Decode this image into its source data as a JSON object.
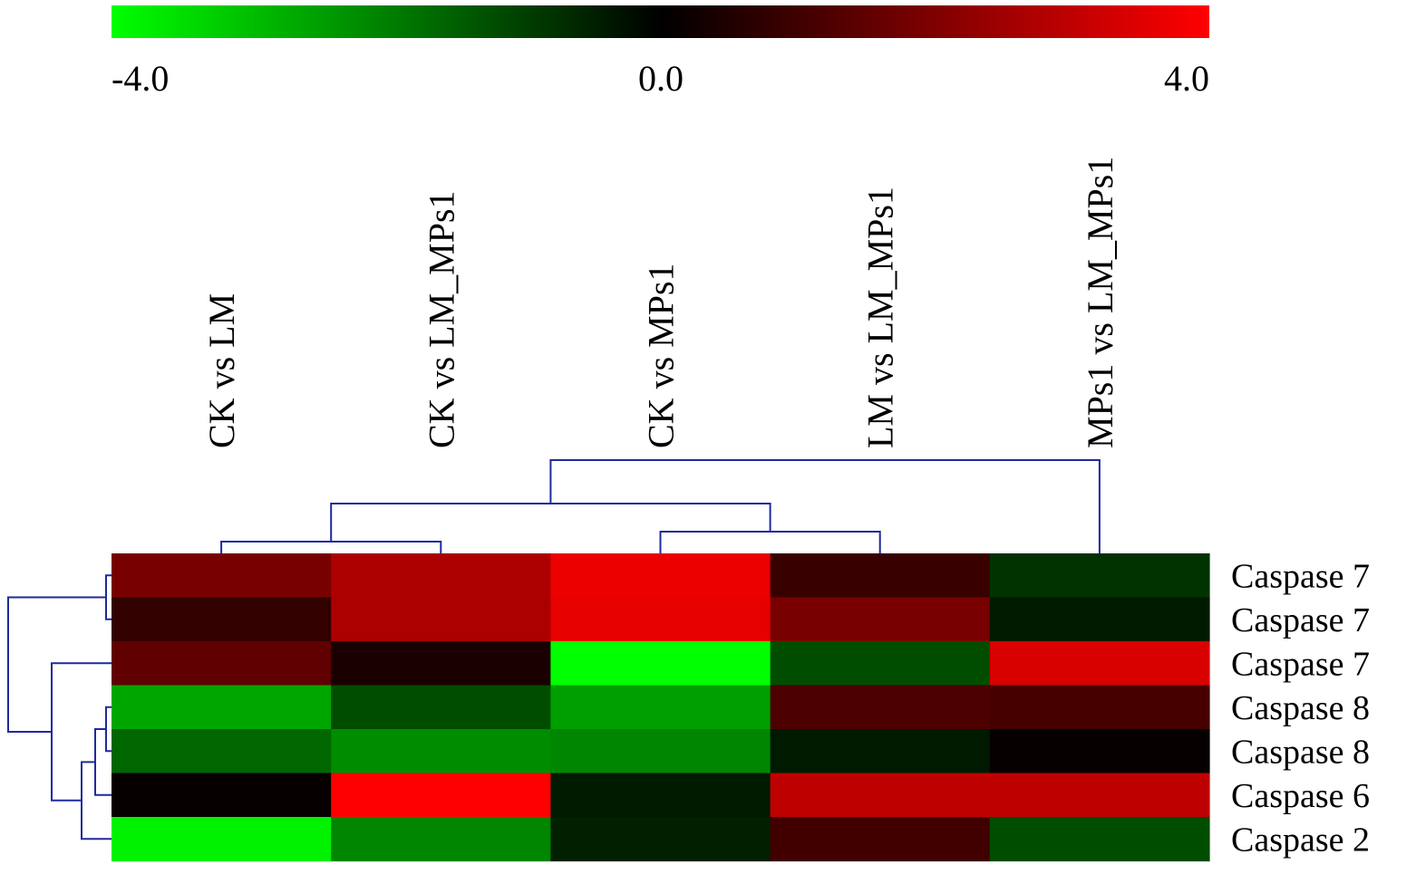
{
  "chart_data": {
    "type": "heatmap",
    "title": "",
    "colorscale": {
      "min": -4.0,
      "max": 4.0,
      "low_color": "#00ff00",
      "mid_color": "#000000",
      "high_color": "#ff0000",
      "tick_labels": [
        "-4.0",
        "0.0",
        "4.0"
      ]
    },
    "columns": [
      "CK vs LM",
      "CK vs LM_MPs1",
      "CK vs MPs1",
      "LM vs LM_MPs1",
      "MPs1 vs LM_MPs1"
    ],
    "rows": [
      "Caspase 7",
      "Caspase 7",
      "Caspase 7",
      "Caspase 8",
      "Caspase 8",
      "Caspase 6",
      "Caspase 2"
    ],
    "values": [
      [
        1.9,
        2.7,
        3.7,
        0.9,
        -0.8
      ],
      [
        0.8,
        2.7,
        3.6,
        1.9,
        -0.4
      ],
      [
        1.5,
        0.4,
        -4.0,
        -1.2,
        3.4
      ],
      [
        -2.6,
        -1.2,
        -2.5,
        1.2,
        1.1
      ],
      [
        -1.6,
        -2.2,
        -2.1,
        -0.4,
        0.1
      ],
      [
        0.1,
        4.0,
        -0.4,
        3.0,
        3.0
      ],
      [
        -3.8,
        -2.1,
        -0.5,
        1.0,
        -1.2
      ]
    ],
    "dendrogram": {
      "color": "#1f2a9c",
      "columns": [
        [
          0,
          1
        ],
        [
          2,
          3
        ],
        [
          5,
          6
        ],
        [
          7,
          4
        ]
      ],
      "rows": [
        [
          0,
          1
        ],
        [
          3,
          4
        ],
        [
          8,
          5
        ],
        [
          9,
          6
        ],
        [
          2,
          10
        ],
        [
          7,
          11
        ]
      ]
    }
  }
}
